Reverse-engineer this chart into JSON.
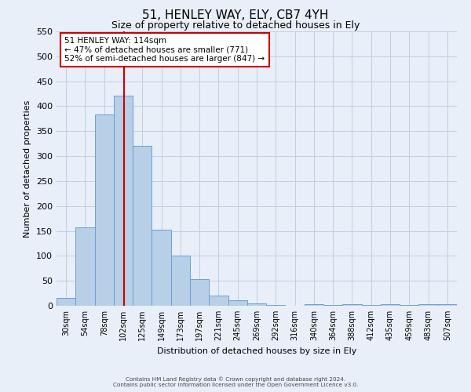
{
  "title": "51, HENLEY WAY, ELY, CB7 4YH",
  "subtitle": "Size of property relative to detached houses in Ely",
  "xlabel": "Distribution of detached houses by size in Ely",
  "ylabel": "Number of detached properties",
  "bar_labels": [
    "30sqm",
    "54sqm",
    "78sqm",
    "102sqm",
    "125sqm",
    "149sqm",
    "173sqm",
    "197sqm",
    "221sqm",
    "245sqm",
    "269sqm",
    "292sqm",
    "316sqm",
    "340sqm",
    "364sqm",
    "388sqm",
    "412sqm",
    "435sqm",
    "459sqm",
    "483sqm",
    "507sqm"
  ],
  "bar_values": [
    15,
    157,
    383,
    421,
    321,
    153,
    101,
    54,
    20,
    11,
    5,
    2,
    0,
    3,
    1,
    3,
    1,
    3,
    1,
    3,
    3
  ],
  "bar_color": "#b8cfe8",
  "bar_edge_color": "#6a9fd8",
  "vline_color": "#cc0000",
  "ylim": [
    0,
    550
  ],
  "annotation_text": "51 HENLEY WAY: 114sqm\n← 47% of detached houses are smaller (771)\n52% of semi-detached houses are larger (847) →",
  "annotation_box_color": "#ffffff",
  "annotation_box_edge": "#cc0000",
  "footer_line1": "Contains HM Land Registry data © Crown copyright and database right 2024.",
  "footer_line2": "Contains public sector information licensed under the Open Government Licence v3.0.",
  "background_color": "#e8eff8",
  "grid_color": "#c0cfe0",
  "title_fontsize": 11,
  "subtitle_fontsize": 9,
  "tick_fontsize": 7,
  "ylabel_fontsize": 8,
  "xlabel_fontsize": 8
}
